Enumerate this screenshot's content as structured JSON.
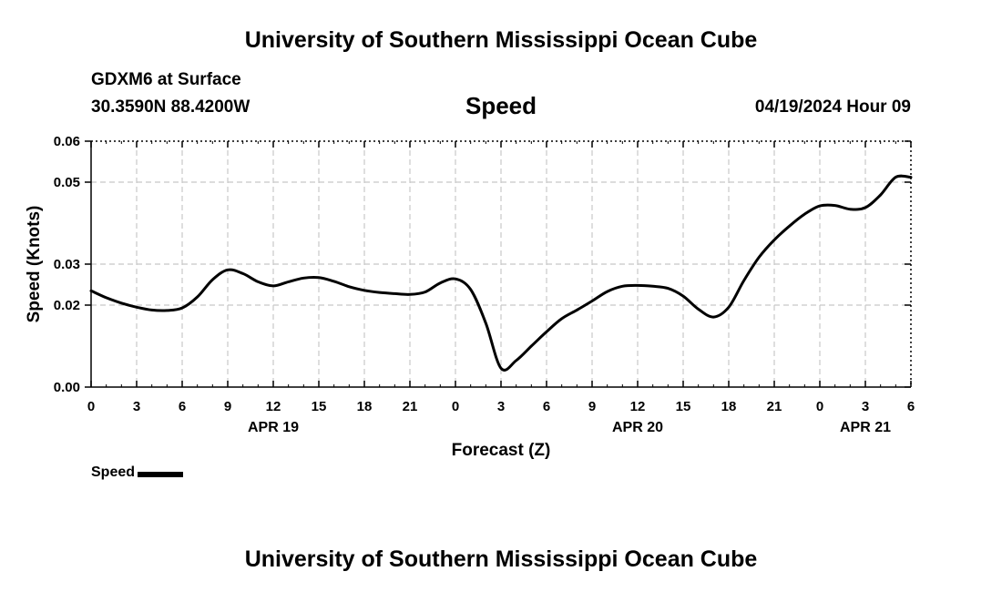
{
  "header": {
    "title": "University of Southern Mississippi Ocean Cube",
    "station": "GDXM6 at Surface",
    "coordinates": "30.3590N  88.4200W",
    "parameter": "Speed",
    "datetime": "04/19/2024 Hour 09"
  },
  "footer": {
    "title": "University of Southern Mississippi Ocean Cube"
  },
  "legend": {
    "label": "Speed",
    "color": "#000000"
  },
  "chart_data": {
    "type": "line",
    "title": "Speed",
    "xlabel": "Forecast (Z)",
    "ylabel": "Speed (Knots)",
    "xlim": [
      0,
      54
    ],
    "ylim": [
      0,
      0.06
    ],
    "grid": true,
    "y_ticks": [
      0,
      0.02,
      0.03,
      0.05,
      0.06
    ],
    "y_tick_labels": [
      "0.00",
      "0.02",
      "0.03",
      "0.05",
      "0.06"
    ],
    "x_ticks": [
      0,
      3,
      6,
      9,
      12,
      15,
      18,
      21,
      24,
      27,
      30,
      33,
      36,
      39,
      42,
      45,
      48,
      51,
      54
    ],
    "x_tick_labels": [
      "0",
      "3",
      "6",
      "9",
      "12",
      "15",
      "18",
      "21",
      "0",
      "3",
      "6",
      "9",
      "12",
      "15",
      "18",
      "21",
      "0",
      "3",
      "6"
    ],
    "date_labels": [
      {
        "x": 12,
        "label": "APR 19"
      },
      {
        "x": 36,
        "label": "APR 20"
      },
      {
        "x": 51,
        "label": "APR 21"
      }
    ],
    "legend_position": "bottom-left",
    "series": [
      {
        "name": "Speed",
        "color": "#000000",
        "x": [
          0,
          1,
          2,
          3,
          4,
          5,
          6,
          7,
          8,
          9,
          10,
          11,
          12,
          13,
          14,
          15,
          16,
          17,
          18,
          19,
          20,
          21,
          22,
          23,
          24,
          25,
          26,
          27,
          28,
          29,
          30,
          31,
          32,
          33,
          34,
          35,
          36,
          37,
          38,
          39,
          40,
          41,
          42,
          43,
          44,
          45,
          46,
          47,
          48,
          49,
          50,
          51,
          52,
          53,
          54
        ],
        "values": [
          0.0235,
          0.0218,
          0.0205,
          0.0195,
          0.0188,
          0.0187,
          0.0193,
          0.022,
          0.0262,
          0.0286,
          0.0277,
          0.0257,
          0.0247,
          0.0257,
          0.0266,
          0.0267,
          0.0258,
          0.0245,
          0.0236,
          0.0231,
          0.0228,
          0.0226,
          0.0232,
          0.0254,
          0.0264,
          0.0238,
          0.0156,
          0.0046,
          0.0065,
          0.01,
          0.0135,
          0.0167,
          0.0188,
          0.021,
          0.0233,
          0.0246,
          0.0248,
          0.0246,
          0.0241,
          0.0222,
          0.019,
          0.0171,
          0.0195,
          0.026,
          0.0317,
          0.0359,
          0.0393,
          0.0422,
          0.0442,
          0.0443,
          0.0434,
          0.0438,
          0.0469,
          0.0512,
          0.0512
        ]
      }
    ]
  }
}
